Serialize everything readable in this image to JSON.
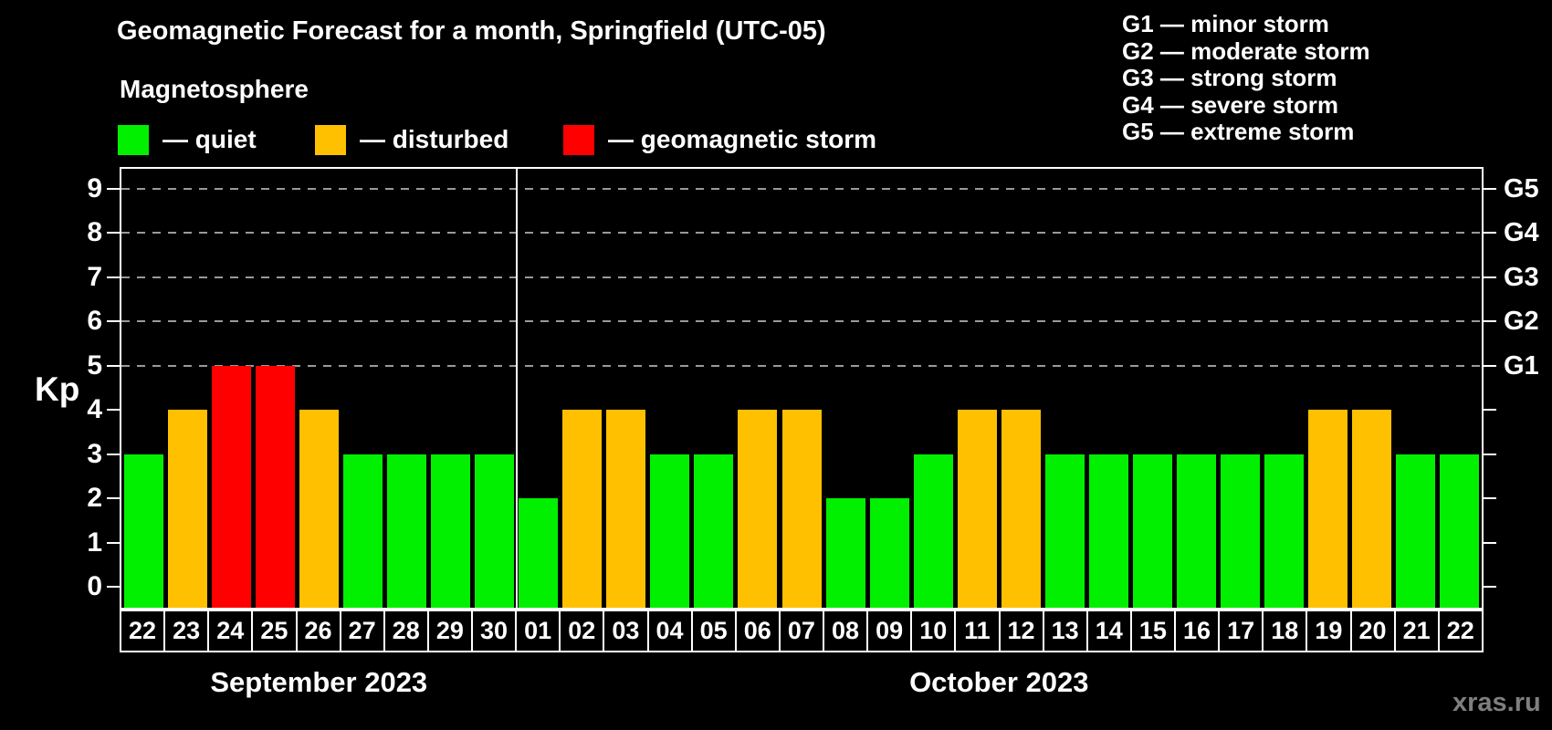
{
  "title": "Geomagnetic Forecast for a month, Springfield (UTC-05)",
  "subtitle": "Magnetosphere",
  "watermark": "xras.ru",
  "legend": {
    "items": [
      {
        "key": "quiet",
        "label": "— quiet",
        "color": "#00f000"
      },
      {
        "key": "disturbed",
        "label": "— disturbed",
        "color": "#ffc000"
      },
      {
        "key": "storm",
        "label": "— geomagnetic storm",
        "color": "#ff0000"
      }
    ]
  },
  "g_scale_legend": [
    {
      "label": "G1 — minor storm"
    },
    {
      "label": "G2 — moderate storm"
    },
    {
      "label": "G3 — strong storm"
    },
    {
      "label": "G4 — severe storm"
    },
    {
      "label": "G5 — extreme storm"
    }
  ],
  "y_axis": {
    "label": "Kp",
    "ticks": [
      0,
      1,
      2,
      3,
      4,
      5,
      6,
      7,
      8,
      9
    ]
  },
  "right_axis": {
    "labels": [
      {
        "text": "G1",
        "kp": 5
      },
      {
        "text": "G2",
        "kp": 6
      },
      {
        "text": "G3",
        "kp": 7
      },
      {
        "text": "G4",
        "kp": 8
      },
      {
        "text": "G5",
        "kp": 9
      }
    ]
  },
  "colors": {
    "background": "#000000",
    "axis": "#ffffff",
    "grid": "#9a9a9a",
    "quiet": "#00f000",
    "disturbed": "#ffc000",
    "storm": "#ff0000",
    "watermark": "#7f7f7f"
  },
  "chart_data": {
    "type": "bar",
    "title": "Geomagnetic Forecast for a month, Springfield (UTC-05)",
    "ylabel": "Kp",
    "ylim": [
      0,
      9
    ],
    "grid_levels": [
      5,
      6,
      7,
      8,
      9
    ],
    "legend_position": "top",
    "months": [
      {
        "label": "September 2023",
        "points": [
          {
            "day": "22",
            "kp": 3,
            "status": "quiet"
          },
          {
            "day": "23",
            "kp": 4,
            "status": "disturbed"
          },
          {
            "day": "24",
            "kp": 5,
            "status": "storm"
          },
          {
            "day": "25",
            "kp": 5,
            "status": "storm"
          },
          {
            "day": "26",
            "kp": 4,
            "status": "disturbed"
          },
          {
            "day": "27",
            "kp": 3,
            "status": "quiet"
          },
          {
            "day": "28",
            "kp": 3,
            "status": "quiet"
          },
          {
            "day": "29",
            "kp": 3,
            "status": "quiet"
          },
          {
            "day": "30",
            "kp": 3,
            "status": "quiet"
          }
        ]
      },
      {
        "label": "October 2023",
        "points": [
          {
            "day": "01",
            "kp": 2,
            "status": "quiet"
          },
          {
            "day": "02",
            "kp": 4,
            "status": "disturbed"
          },
          {
            "day": "03",
            "kp": 4,
            "status": "disturbed"
          },
          {
            "day": "04",
            "kp": 3,
            "status": "quiet"
          },
          {
            "day": "05",
            "kp": 3,
            "status": "quiet"
          },
          {
            "day": "06",
            "kp": 4,
            "status": "disturbed"
          },
          {
            "day": "07",
            "kp": 4,
            "status": "disturbed"
          },
          {
            "day": "08",
            "kp": 2,
            "status": "quiet"
          },
          {
            "day": "09",
            "kp": 2,
            "status": "quiet"
          },
          {
            "day": "10",
            "kp": 3,
            "status": "quiet"
          },
          {
            "day": "11",
            "kp": 4,
            "status": "disturbed"
          },
          {
            "day": "12",
            "kp": 4,
            "status": "disturbed"
          },
          {
            "day": "13",
            "kp": 3,
            "status": "quiet"
          },
          {
            "day": "14",
            "kp": 3,
            "status": "quiet"
          },
          {
            "day": "15",
            "kp": 3,
            "status": "quiet"
          },
          {
            "day": "16",
            "kp": 3,
            "status": "quiet"
          },
          {
            "day": "17",
            "kp": 3,
            "status": "quiet"
          },
          {
            "day": "18",
            "kp": 3,
            "status": "quiet"
          },
          {
            "day": "19",
            "kp": 4,
            "status": "disturbed"
          },
          {
            "day": "20",
            "kp": 4,
            "status": "disturbed"
          },
          {
            "day": "21",
            "kp": 3,
            "status": "quiet"
          },
          {
            "day": "22",
            "kp": 3,
            "status": "quiet"
          }
        ]
      }
    ]
  }
}
